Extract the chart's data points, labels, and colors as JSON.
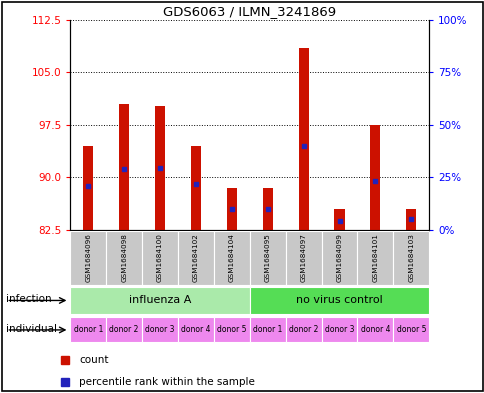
{
  "title": "GDS6063 / ILMN_3241869",
  "samples": [
    "GSM1684096",
    "GSM1684098",
    "GSM1684100",
    "GSM1684102",
    "GSM1684104",
    "GSM1684095",
    "GSM1684097",
    "GSM1684099",
    "GSM1684101",
    "GSM1684103"
  ],
  "count_values": [
    94.5,
    100.5,
    100.2,
    94.5,
    88.5,
    88.5,
    108.5,
    85.5,
    97.5,
    85.5
  ],
  "percentile_values": [
    88.8,
    91.2,
    91.3,
    89.0,
    85.5,
    85.5,
    94.5,
    83.8,
    89.5,
    84.0
  ],
  "ymin": 82.5,
  "ymax": 112.5,
  "yticks_left": [
    82.5,
    90.0,
    97.5,
    105.0,
    112.5
  ],
  "yticks_right": [
    0,
    25,
    50,
    75,
    100
  ],
  "infection_groups": [
    {
      "label": "influenza A",
      "start": 0,
      "end": 5,
      "color": "#AAEAAA"
    },
    {
      "label": "no virus control",
      "start": 5,
      "end": 10,
      "color": "#55DD55"
    }
  ],
  "donors": [
    "donor 1",
    "donor 2",
    "donor 3",
    "donor 4",
    "donor 5",
    "donor 1",
    "donor 2",
    "donor 3",
    "donor 4",
    "donor 5"
  ],
  "donor_color": "#EE88EE",
  "bar_color": "#CC1100",
  "percentile_color": "#2222BB",
  "bg_color": "#FFFFFF",
  "sample_bg": "#C8C8C8",
  "outer_border_color": "#000000"
}
